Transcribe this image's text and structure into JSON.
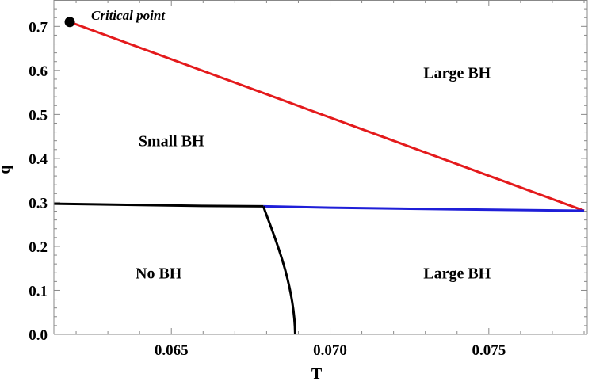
{
  "chart_data": {
    "type": "line",
    "title": "",
    "xlabel": "T",
    "ylabel": "q",
    "xlim": [
      0.0613,
      0.0781
    ],
    "ylim": [
      0.0,
      0.76
    ],
    "x_ticks": [
      {
        "value": 0.065,
        "label": "0.065"
      },
      {
        "value": 0.07,
        "label": "0.070"
      },
      {
        "value": 0.075,
        "label": "0.075"
      }
    ],
    "y_ticks": [
      {
        "value": 0.0,
        "label": "0.0"
      },
      {
        "value": 0.1,
        "label": "0.1"
      },
      {
        "value": 0.2,
        "label": "0.2"
      },
      {
        "value": 0.3,
        "label": "0.3"
      },
      {
        "value": 0.4,
        "label": "0.4"
      },
      {
        "value": 0.5,
        "label": "0.5"
      },
      {
        "value": 0.6,
        "label": "0.6"
      },
      {
        "value": 0.7,
        "label": "0.7"
      }
    ],
    "series": [
      {
        "color": "#e41a1c",
        "x": [
          0.0618,
          0.078
        ],
        "y": [
          0.71,
          0.281
        ]
      },
      {
        "color": "#000000",
        "x": [
          0.0613,
          0.064,
          0.066,
          0.0679
        ],
        "y": [
          0.297,
          0.294,
          0.292,
          0.291
        ]
      },
      {
        "color": "#1f1fd8",
        "x": [
          0.0679,
          0.07,
          0.074,
          0.078
        ],
        "y": [
          0.291,
          0.288,
          0.284,
          0.281
        ]
      },
      {
        "color": "#000000",
        "x": [
          0.0679,
          0.0683,
          0.0686,
          0.0688,
          0.0689,
          0.0689
        ],
        "y": [
          0.291,
          0.247,
          0.188,
          0.12,
          0.05,
          0.0
        ]
      }
    ],
    "critical_point": {
      "x": 0.0618,
      "y": 0.71,
      "label": "Critical point"
    },
    "region_labels": [
      {
        "text": "Large BH",
        "x": 0.074,
        "y": 0.595
      },
      {
        "text": "Small BH",
        "x": 0.065,
        "y": 0.44
      },
      {
        "text": "No BH",
        "x": 0.0646,
        "y": 0.14
      },
      {
        "text": "Large BH",
        "x": 0.074,
        "y": 0.14
      }
    ],
    "grid": false,
    "legend": "none"
  }
}
